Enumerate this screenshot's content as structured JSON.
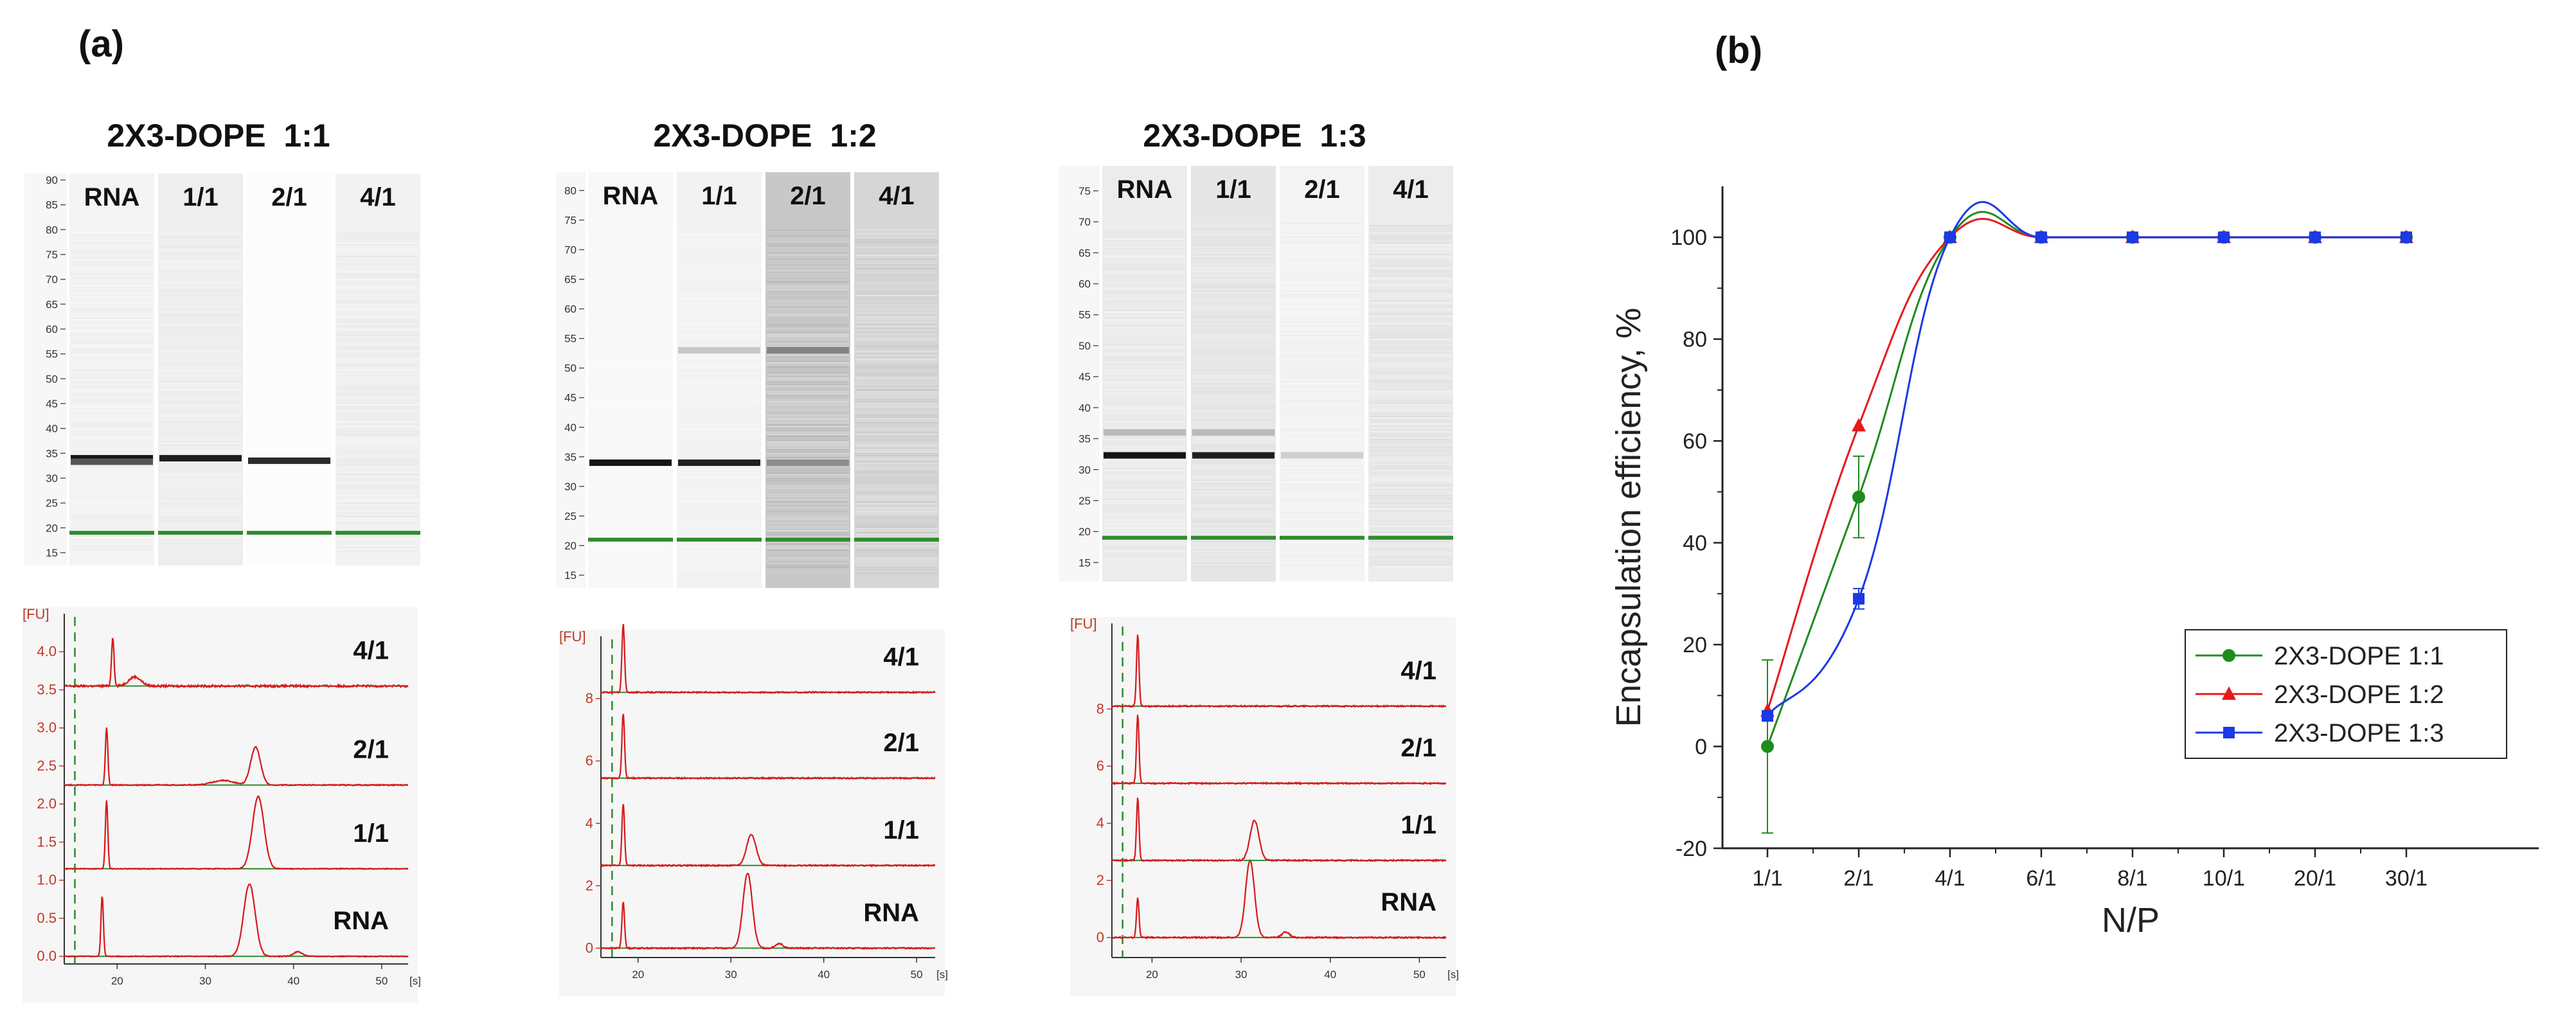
{
  "figure": {
    "panel_a_label": "(a)",
    "panel_b_label": "(b)"
  },
  "chart_data": [
    {
      "type": "gel_image",
      "title": "2X3-DOPE  1:1",
      "lanes": [
        "RNA",
        "1/1",
        "2/1",
        "4/1"
      ],
      "ladder_ticks": [
        90,
        85,
        80,
        75,
        70,
        65,
        60,
        55,
        50,
        45,
        40,
        35,
        30,
        25,
        20,
        15
      ],
      "ylim": [
        15,
        90
      ],
      "marker_band": 19,
      "lane_bands": [
        {
          "lane": "RNA",
          "bands": [
            {
              "pos": 34,
              "intensity": 1.0
            },
            {
              "pos": 33.3,
              "intensity": 0.7
            }
          ]
        },
        {
          "lane": "1/1",
          "bands": [
            {
              "pos": 34,
              "intensity": 0.95
            }
          ]
        },
        {
          "lane": "2/1",
          "bands": [
            {
              "pos": 33.5,
              "intensity": 0.9
            }
          ]
        },
        {
          "lane": "4/1",
          "bands": []
        }
      ],
      "lane_backgrounds": [
        "#f4f4f4",
        "#eeeeee",
        "#fcfcfc",
        "#f2f2f2"
      ],
      "smear": [
        0.18,
        0.14,
        0.03,
        0.22
      ]
    },
    {
      "type": "gel_image",
      "title": "2X3-DOPE  1:2",
      "lanes": [
        "RNA",
        "1/1",
        "2/1",
        "4/1"
      ],
      "ladder_ticks": [
        80,
        75,
        70,
        65,
        60,
        55,
        50,
        45,
        40,
        35,
        30,
        25,
        20,
        15
      ],
      "ylim": [
        15,
        82
      ],
      "marker_band": 21,
      "lane_bands": [
        {
          "lane": "RNA",
          "bands": [
            {
              "pos": 34,
              "intensity": 1.0
            }
          ]
        },
        {
          "lane": "1/1",
          "bands": [
            {
              "pos": 34,
              "intensity": 0.95
            },
            {
              "pos": 53,
              "intensity": 0.18
            }
          ]
        },
        {
          "lane": "2/1",
          "bands": [
            {
              "pos": 34,
              "intensity": 0.45
            },
            {
              "pos": 53,
              "intensity": 0.5
            }
          ]
        },
        {
          "lane": "4/1",
          "bands": []
        }
      ],
      "lane_backgrounds": [
        "#f8f8f8",
        "#f2f2f2",
        "#c8c8c8",
        "#d6d6d6"
      ],
      "smear": [
        0.05,
        0.08,
        0.55,
        0.4
      ]
    },
    {
      "type": "gel_image",
      "title": "2X3-DOPE  1:3",
      "lanes": [
        "RNA",
        "1/1",
        "2/1",
        "4/1"
      ],
      "ladder_ticks": [
        75,
        70,
        65,
        60,
        55,
        50,
        45,
        40,
        35,
        30,
        25,
        20,
        15
      ],
      "ylim": [
        14,
        78
      ],
      "marker_band": 19,
      "lane_bands": [
        {
          "lane": "RNA",
          "bands": [
            {
              "pos": 32.3,
              "intensity": 1.0
            },
            {
              "pos": 36,
              "intensity": 0.25
            }
          ]
        },
        {
          "lane": "1/1",
          "bands": [
            {
              "pos": 32.3,
              "intensity": 0.95
            },
            {
              "pos": 36,
              "intensity": 0.25
            }
          ]
        },
        {
          "lane": "2/1",
          "bands": [
            {
              "pos": 32.3,
              "intensity": 0.15
            }
          ]
        },
        {
          "lane": "4/1",
          "bands": []
        }
      ],
      "lane_backgrounds": [
        "#ececec",
        "#e6e6e6",
        "#f4f4f4",
        "#ececec"
      ],
      "smear": [
        0.2,
        0.2,
        0.15,
        0.3
      ]
    },
    {
      "type": "electropherogram",
      "axis_label": "[FU]",
      "x_unit": "[s]",
      "xlim": [
        14,
        53
      ],
      "x_ticks": [
        20,
        30,
        40,
        50
      ],
      "y_ticks": [
        0.0,
        0.5,
        1.0,
        1.5,
        2.0,
        2.5,
        3.0,
        3.5,
        4.0
      ],
      "y_tick_labels": [
        "0.0",
        "0.5",
        "1.0",
        "1.5",
        "2.0",
        "2.5",
        "3.0",
        "3.5",
        "4.0"
      ],
      "ylim": [
        -0.1,
        4.5
      ],
      "traces": [
        {
          "label": "RNA",
          "baseline": 0.0,
          "peaks": [
            {
              "x": 18.3,
              "h": 0.8,
              "w": 0.14
            },
            {
              "x": 35.0,
              "h": 0.95,
              "w": 0.65
            },
            {
              "x": 40.5,
              "h": 0.06,
              "w": 0.5
            }
          ],
          "noise": 0.012
        },
        {
          "label": "1/1",
          "baseline": 1.15,
          "peaks": [
            {
              "x": 18.8,
              "h": 0.9,
              "w": 0.14
            },
            {
              "x": 36.0,
              "h": 0.95,
              "w": 0.65
            }
          ],
          "noise": 0.012
        },
        {
          "label": "2/1",
          "baseline": 2.25,
          "peaks": [
            {
              "x": 18.8,
              "h": 0.75,
              "w": 0.14
            },
            {
              "x": 35.7,
              "h": 0.5,
              "w": 0.55
            },
            {
              "x": 32.0,
              "h": 0.06,
              "w": 1.2
            }
          ],
          "noise": 0.015
        },
        {
          "label": "4/1",
          "baseline": 3.55,
          "peaks": [
            {
              "x": 19.5,
              "h": 0.65,
              "w": 0.14
            },
            {
              "x": 22.0,
              "h": 0.12,
              "w": 0.7
            }
          ],
          "noise": 0.03
        }
      ]
    },
    {
      "type": "electropherogram",
      "axis_label": "[FU]",
      "x_unit": "[s]",
      "xlim": [
        16,
        52
      ],
      "x_ticks": [
        20,
        30,
        40,
        50
      ],
      "y_ticks": [
        0,
        2,
        4,
        6,
        8
      ],
      "y_tick_labels": [
        "0",
        "2",
        "4",
        "6",
        "8"
      ],
      "ylim": [
        -0.3,
        10
      ],
      "traces": [
        {
          "label": "RNA",
          "baseline": 0.0,
          "peaks": [
            {
              "x": 18.4,
              "h": 1.5,
              "w": 0.14
            },
            {
              "x": 31.8,
              "h": 2.4,
              "w": 0.5
            },
            {
              "x": 35.2,
              "h": 0.15,
              "w": 0.4
            }
          ],
          "noise": 0.02
        },
        {
          "label": "1/1",
          "baseline": 2.65,
          "peaks": [
            {
              "x": 18.4,
              "h": 2.0,
              "w": 0.14
            },
            {
              "x": 32.2,
              "h": 1.0,
              "w": 0.5
            }
          ],
          "noise": 0.02
        },
        {
          "label": "2/1",
          "baseline": 5.45,
          "peaks": [
            {
              "x": 18.4,
              "h": 2.1,
              "w": 0.14
            }
          ],
          "noise": 0.02
        },
        {
          "label": "4/1",
          "baseline": 8.2,
          "peaks": [
            {
              "x": 18.4,
              "h": 2.2,
              "w": 0.14
            }
          ],
          "noise": 0.02
        }
      ]
    },
    {
      "type": "electropherogram",
      "axis_label": "[FU]",
      "x_unit": "[s]",
      "xlim": [
        15.5,
        53
      ],
      "x_ticks": [
        20,
        30,
        40,
        50
      ],
      "y_ticks": [
        0,
        2,
        4,
        6,
        8
      ],
      "y_tick_labels": [
        "0",
        "2",
        "4",
        "6",
        "8"
      ],
      "ylim": [
        -0.7,
        11
      ],
      "traces": [
        {
          "label": "RNA",
          "baseline": 0.0,
          "peaks": [
            {
              "x": 18.4,
              "h": 1.4,
              "w": 0.14
            },
            {
              "x": 31.0,
              "h": 2.7,
              "w": 0.5
            },
            {
              "x": 35.0,
              "h": 0.2,
              "w": 0.4
            }
          ],
          "noise": 0.02
        },
        {
          "label": "1/1",
          "baseline": 2.7,
          "peaks": [
            {
              "x": 18.4,
              "h": 2.2,
              "w": 0.14
            },
            {
              "x": 31.5,
              "h": 1.4,
              "w": 0.5
            }
          ],
          "noise": 0.02
        },
        {
          "label": "2/1",
          "baseline": 5.4,
          "peaks": [
            {
              "x": 18.4,
              "h": 2.4,
              "w": 0.14
            }
          ],
          "noise": 0.02
        },
        {
          "label": "4/1",
          "baseline": 8.1,
          "peaks": [
            {
              "x": 18.4,
              "h": 2.5,
              "w": 0.14
            }
          ],
          "noise": 0.02
        }
      ]
    },
    {
      "type": "line",
      "xlabel": "N/P",
      "ylabel": "Encapsulation efficiency, %",
      "categories": [
        "1/1",
        "2/1",
        "4/1",
        "6/1",
        "8/1",
        "10/1",
        "20/1",
        "30/1"
      ],
      "ylim": [
        -20,
        110
      ],
      "y_ticks": [
        -20,
        0,
        20,
        40,
        60,
        80,
        100
      ],
      "legend_position": "lower-right",
      "series": [
        {
          "name": "2X3-DOPE 1:1",
          "color": "#1e8c1e",
          "marker": "circle",
          "values": [
            0,
            49,
            100,
            100,
            100,
            100,
            100,
            100
          ],
          "errors": [
            17,
            8,
            0,
            0,
            0,
            0,
            0,
            0
          ]
        },
        {
          "name": "2X3-DOPE 1:2",
          "color": "#e41a1c",
          "marker": "triangle",
          "values": [
            7,
            63,
            100,
            100,
            100,
            100,
            100,
            100
          ],
          "errors": [
            0,
            0,
            0,
            0,
            0,
            0,
            0,
            0
          ]
        },
        {
          "name": "2X3-DOPE 1:3",
          "color": "#1c39e4",
          "marker": "square",
          "values": [
            6,
            29,
            100,
            100,
            100,
            100,
            100,
            100
          ],
          "errors": [
            0,
            2,
            0,
            0,
            0,
            0,
            0,
            0
          ]
        }
      ]
    }
  ]
}
